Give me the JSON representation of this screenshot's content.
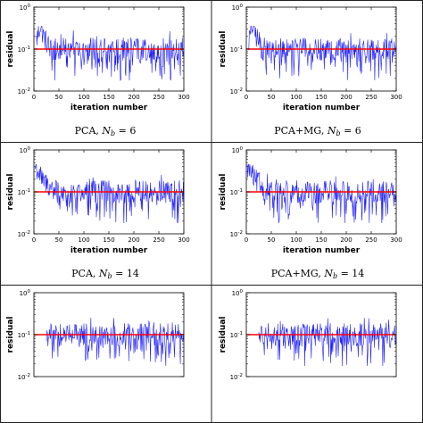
{
  "chart_data": [
    {
      "type": "line",
      "panel_row": 1,
      "panel_col": 1,
      "caption": "PCA, N_b = 6",
      "caption_parts": {
        "prefix": "PCA, ",
        "symbol": "N",
        "subscript": "b",
        "suffix": " = 6"
      },
      "xlabel": "iteration number",
      "ylabel": "residual",
      "xlim": [
        0,
        300
      ],
      "ylim": [
        0.01,
        1
      ],
      "yscale": "log",
      "xticks": [
        0,
        50,
        100,
        150,
        200,
        250,
        300
      ],
      "yticks": [
        {
          "value": 0.01,
          "base": "10",
          "exp": "-2"
        },
        {
          "value": 0.1,
          "base": "10",
          "exp": "-1"
        },
        {
          "value": 1,
          "base": "10",
          "exp": "0"
        }
      ],
      "threshold": 0.1,
      "series": [
        {
          "role": "residual",
          "color": "#1f1fff",
          "start_iter": 5,
          "peak": 0.3,
          "shape": "spike"
        },
        {
          "role": "threshold",
          "color": "#ff0000",
          "value": 0.1
        }
      ]
    },
    {
      "type": "line",
      "panel_row": 1,
      "panel_col": 2,
      "caption": "PCA+MG, N_b = 6",
      "caption_parts": {
        "prefix": "PCA+MG, ",
        "symbol": "N",
        "subscript": "b",
        "suffix": " = 6"
      },
      "xlabel": "iteration number",
      "ylabel": "residual",
      "xlim": [
        0,
        300
      ],
      "ylim": [
        0.01,
        1
      ],
      "yscale": "log",
      "xticks": [
        0,
        50,
        100,
        150,
        200,
        250,
        300
      ],
      "yticks": [
        {
          "value": 0.01,
          "base": "10",
          "exp": "-2"
        },
        {
          "value": 0.1,
          "base": "10",
          "exp": "-1"
        },
        {
          "value": 1,
          "base": "10",
          "exp": "0"
        }
      ],
      "threshold": 0.1,
      "series": [
        {
          "role": "residual",
          "color": "#1f1fff",
          "start_iter": 5,
          "peak": 0.3,
          "shape": "spike"
        },
        {
          "role": "threshold",
          "color": "#ff0000",
          "value": 0.1
        }
      ]
    },
    {
      "type": "line",
      "panel_row": 2,
      "panel_col": 1,
      "caption": "PCA, N_b = 14",
      "caption_parts": {
        "prefix": "PCA, ",
        "symbol": "N",
        "subscript": "b",
        "suffix": " = 14"
      },
      "xlabel": "iteration number",
      "ylabel": "residual",
      "xlim": [
        0,
        300
      ],
      "ylim": [
        0.01,
        1
      ],
      "yscale": "log",
      "xticks": [
        0,
        50,
        100,
        150,
        200,
        250,
        300
      ],
      "yticks": [
        {
          "value": 0.01,
          "base": "10",
          "exp": "-2"
        },
        {
          "value": 0.1,
          "base": "10",
          "exp": "-1"
        },
        {
          "value": 1,
          "base": "10",
          "exp": "0"
        }
      ],
      "threshold": 0.1,
      "series": [
        {
          "role": "residual",
          "color": "#1f1fff",
          "start_iter": 2,
          "peak": 0.4,
          "shape": "decay"
        },
        {
          "role": "threshold",
          "color": "#ff0000",
          "value": 0.1
        }
      ]
    },
    {
      "type": "line",
      "panel_row": 2,
      "panel_col": 2,
      "caption": "PCA+MG, N_b = 14",
      "caption_parts": {
        "prefix": "PCA+MG, ",
        "symbol": "N",
        "subscript": "b",
        "suffix": " = 14"
      },
      "xlabel": "iteration number",
      "ylabel": "residual",
      "xlim": [
        0,
        300
      ],
      "ylim": [
        0.01,
        1
      ],
      "yscale": "log",
      "xticks": [
        0,
        50,
        100,
        150,
        200,
        250,
        300
      ],
      "yticks": [
        {
          "value": 0.01,
          "base": "10",
          "exp": "-2"
        },
        {
          "value": 0.1,
          "base": "10",
          "exp": "-1"
        },
        {
          "value": 1,
          "base": "10",
          "exp": "0"
        }
      ],
      "threshold": 0.1,
      "series": [
        {
          "role": "residual",
          "color": "#1f1fff",
          "start_iter": 2,
          "peak": 0.4,
          "shape": "decay"
        },
        {
          "role": "threshold",
          "color": "#ff0000",
          "value": 0.1
        }
      ]
    },
    {
      "type": "line",
      "panel_row": 3,
      "panel_col": 1,
      "caption": "",
      "xlabel": "",
      "ylabel": "residual",
      "xlim": [
        0,
        300
      ],
      "ylim": [
        0.01,
        1
      ],
      "yscale": "log",
      "xticks": [],
      "yticks": [
        {
          "value": 0.01,
          "base": "10",
          "exp": "-2"
        },
        {
          "value": 0.1,
          "base": "10",
          "exp": "-1"
        },
        {
          "value": 1,
          "base": "10",
          "exp": "0"
        }
      ],
      "threshold": 0.1,
      "series": [
        {
          "role": "residual",
          "color": "#1f1fff",
          "start_iter": 25,
          "peak": 0.2,
          "shape": "flat"
        },
        {
          "role": "threshold",
          "color": "#ff0000",
          "value": 0.1
        }
      ]
    },
    {
      "type": "line",
      "panel_row": 3,
      "panel_col": 2,
      "caption": "",
      "xlabel": "",
      "ylabel": "residual",
      "xlim": [
        0,
        300
      ],
      "ylim": [
        0.01,
        1
      ],
      "yscale": "log",
      "xticks": [],
      "yticks": [
        {
          "value": 0.01,
          "base": "10",
          "exp": "-2"
        },
        {
          "value": 0.1,
          "base": "10",
          "exp": "-1"
        },
        {
          "value": 1,
          "base": "10",
          "exp": "0"
        }
      ],
      "threshold": 0.1,
      "series": [
        {
          "role": "residual",
          "color": "#1f1fff",
          "start_iter": 25,
          "peak": 0.2,
          "shape": "flat"
        },
        {
          "role": "threshold",
          "color": "#ff0000",
          "value": 0.1
        }
      ]
    }
  ]
}
